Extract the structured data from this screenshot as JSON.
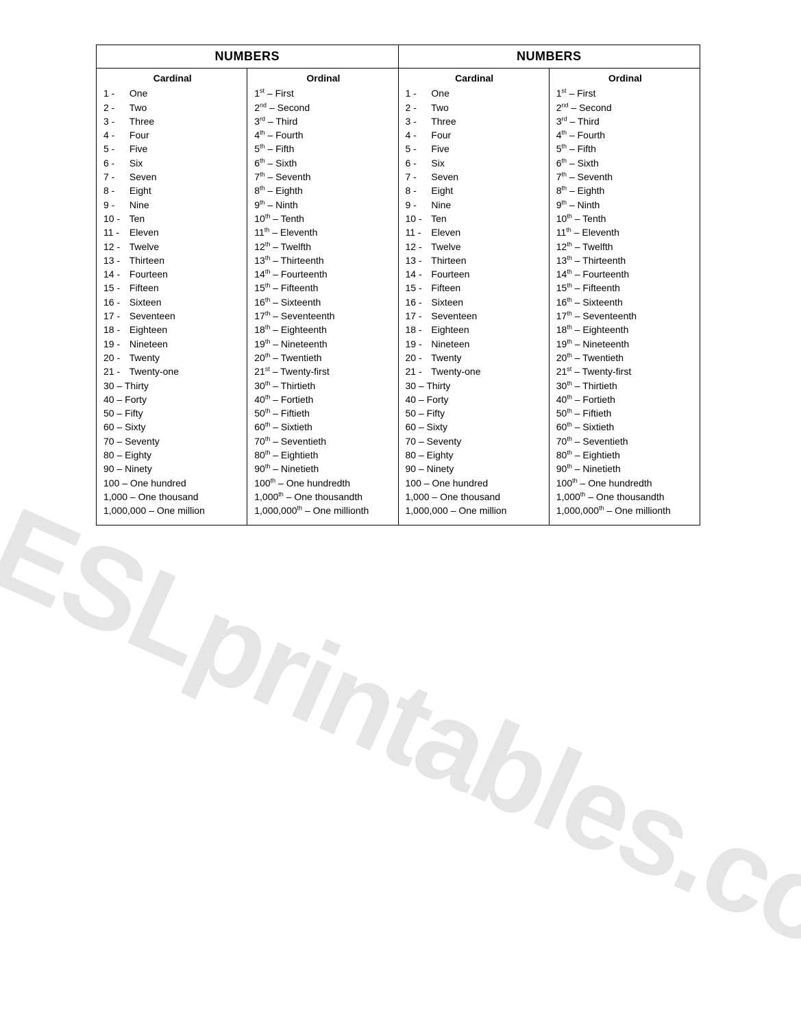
{
  "watermark": "ESLprintables.com",
  "title": "NUMBERS",
  "cardinal_header": "Cardinal",
  "ordinal_header": "Ordinal",
  "cardinal": [
    {
      "n": "1 -",
      "pad": true,
      "word": "One"
    },
    {
      "n": "2 -",
      "pad": true,
      "word": "Two"
    },
    {
      "n": "3 -",
      "pad": true,
      "word": "Three"
    },
    {
      "n": "4 -",
      "pad": true,
      "word": "Four"
    },
    {
      "n": "5 -",
      "pad": true,
      "word": "Five"
    },
    {
      "n": "6 -",
      "pad": true,
      "word": "Six"
    },
    {
      "n": "7 -",
      "pad": true,
      "word": "Seven"
    },
    {
      "n": "8 -",
      "pad": true,
      "word": "Eight"
    },
    {
      "n": "9 -",
      "pad": true,
      "word": "Nine"
    },
    {
      "n": "10 -",
      "pad": true,
      "word": "Ten"
    },
    {
      "n": "11 -",
      "pad": true,
      "word": "Eleven"
    },
    {
      "n": "12 -",
      "pad": true,
      "word": "Twelve"
    },
    {
      "n": "13 -",
      "pad": true,
      "word": "Thirteen"
    },
    {
      "n": "14 -",
      "pad": true,
      "word": "Fourteen"
    },
    {
      "n": "15 -",
      "pad": true,
      "word": "Fifteen"
    },
    {
      "n": "16 -",
      "pad": true,
      "word": "Sixteen"
    },
    {
      "n": "17 -",
      "pad": true,
      "word": "Seventeen"
    },
    {
      "n": "18 -",
      "pad": true,
      "word": "Eighteen"
    },
    {
      "n": "19 -",
      "pad": true,
      "word": "Nineteen"
    },
    {
      "n": "20 -",
      "pad": true,
      "word": "Twenty"
    },
    {
      "n": "21 -",
      "pad": true,
      "word": "Twenty-one"
    },
    {
      "n": "30 – ",
      "pad": false,
      "word": "Thirty"
    },
    {
      "n": "40 – ",
      "pad": false,
      "word": "Forty"
    },
    {
      "n": "50 – ",
      "pad": false,
      "word": "Fifty"
    },
    {
      "n": "60 – ",
      "pad": false,
      "word": "Sixty"
    },
    {
      "n": "70 – ",
      "pad": false,
      "word": "Seventy"
    },
    {
      "n": "80 – ",
      "pad": false,
      "word": "Eighty"
    },
    {
      "n": "90 – ",
      "pad": false,
      "word": "Ninety"
    },
    {
      "n": "100 – ",
      "pad": false,
      "word": "One hundred"
    },
    {
      "n": "1,000 – ",
      "pad": false,
      "word": "One thousand"
    },
    {
      "n": "1,000,000 – ",
      "pad": false,
      "word": "One million"
    }
  ],
  "ordinal": [
    {
      "n": "1",
      "suf": "st",
      "word": "First"
    },
    {
      "n": "2",
      "suf": "nd",
      "word": "Second"
    },
    {
      "n": "3",
      "suf": "rd",
      "word": "Third"
    },
    {
      "n": "4",
      "suf": "th",
      "word": "Fourth"
    },
    {
      "n": "5",
      "suf": "th",
      "word": "Fifth"
    },
    {
      "n": "6",
      "suf": "th",
      "word": "Sixth"
    },
    {
      "n": "7",
      "suf": "th",
      "word": "Seventh"
    },
    {
      "n": "8",
      "suf": "th",
      "word": "Eighth"
    },
    {
      "n": "9",
      "suf": "th",
      "word": "Ninth"
    },
    {
      "n": "10",
      "suf": "th",
      "word": "Tenth"
    },
    {
      "n": "11",
      "suf": "th",
      "word": "Eleventh"
    },
    {
      "n": "12",
      "suf": "th",
      "word": "Twelfth"
    },
    {
      "n": "13",
      "suf": "th",
      "word": "Thirteenth"
    },
    {
      "n": "14",
      "suf": "th",
      "word": "Fourteenth"
    },
    {
      "n": "15",
      "suf": "th",
      "word": "Fifteenth"
    },
    {
      "n": "16",
      "suf": "th",
      "word": "Sixteenth"
    },
    {
      "n": "17",
      "suf": "th",
      "word": "Seventeenth"
    },
    {
      "n": "18",
      "suf": "th",
      "word": "Eighteenth"
    },
    {
      "n": "19",
      "suf": "th",
      "word": "Nineteenth"
    },
    {
      "n": "20",
      "suf": "th",
      "word": "Twentieth"
    },
    {
      "n": "21",
      "suf": "st",
      "word": "Twenty-first"
    },
    {
      "n": "30",
      "suf": "th",
      "word": "Thirtieth"
    },
    {
      "n": "40",
      "suf": "th",
      "word": "Fortieth"
    },
    {
      "n": "50",
      "suf": "th",
      "word": "Fiftieth"
    },
    {
      "n": "60",
      "suf": "th",
      "word": "Sixtieth"
    },
    {
      "n": "70",
      "suf": "th",
      "word": "Seventieth"
    },
    {
      "n": "80",
      "suf": "th",
      "word": "Eightieth"
    },
    {
      "n": "90",
      "suf": "th",
      "word": "Ninetieth"
    },
    {
      "n": "100",
      "suf": "th",
      "word": "One hundredth"
    },
    {
      "n": "1,000",
      "suf": "th",
      "word": "One thousandth"
    },
    {
      "n": "1,000,000",
      "suf": "th",
      "word": "One millionth"
    }
  ]
}
